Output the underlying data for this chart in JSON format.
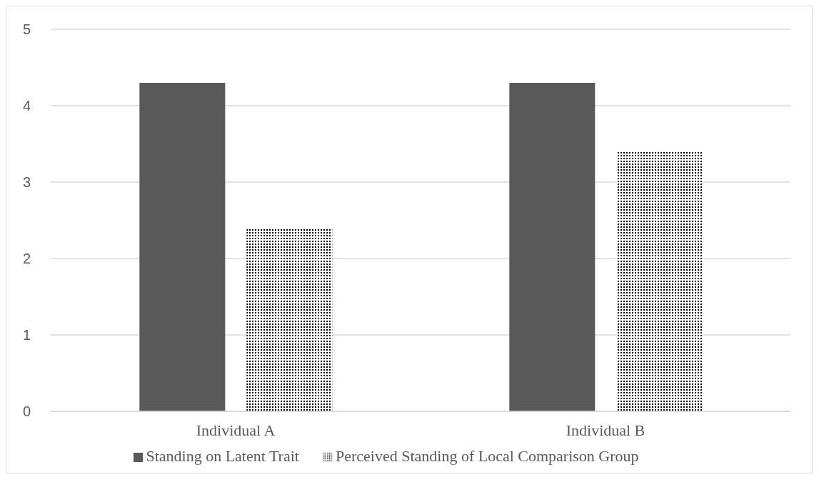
{
  "chart_data": {
    "type": "bar",
    "categories": [
      "Individual A",
      "Individual B"
    ],
    "series": [
      {
        "name": "Standing on Latent Trait",
        "color": "#595959",
        "values": [
          4.3,
          4.3
        ]
      },
      {
        "name": "Perceived Standing of Local Comparison Group",
        "color": "#000000",
        "values": [
          2.4,
          3.4
        ]
      }
    ],
    "ylim": [
      0,
      5
    ],
    "yticks": [
      0,
      1,
      2,
      3,
      4,
      5
    ],
    "grid": "y",
    "legend": "bottom"
  }
}
